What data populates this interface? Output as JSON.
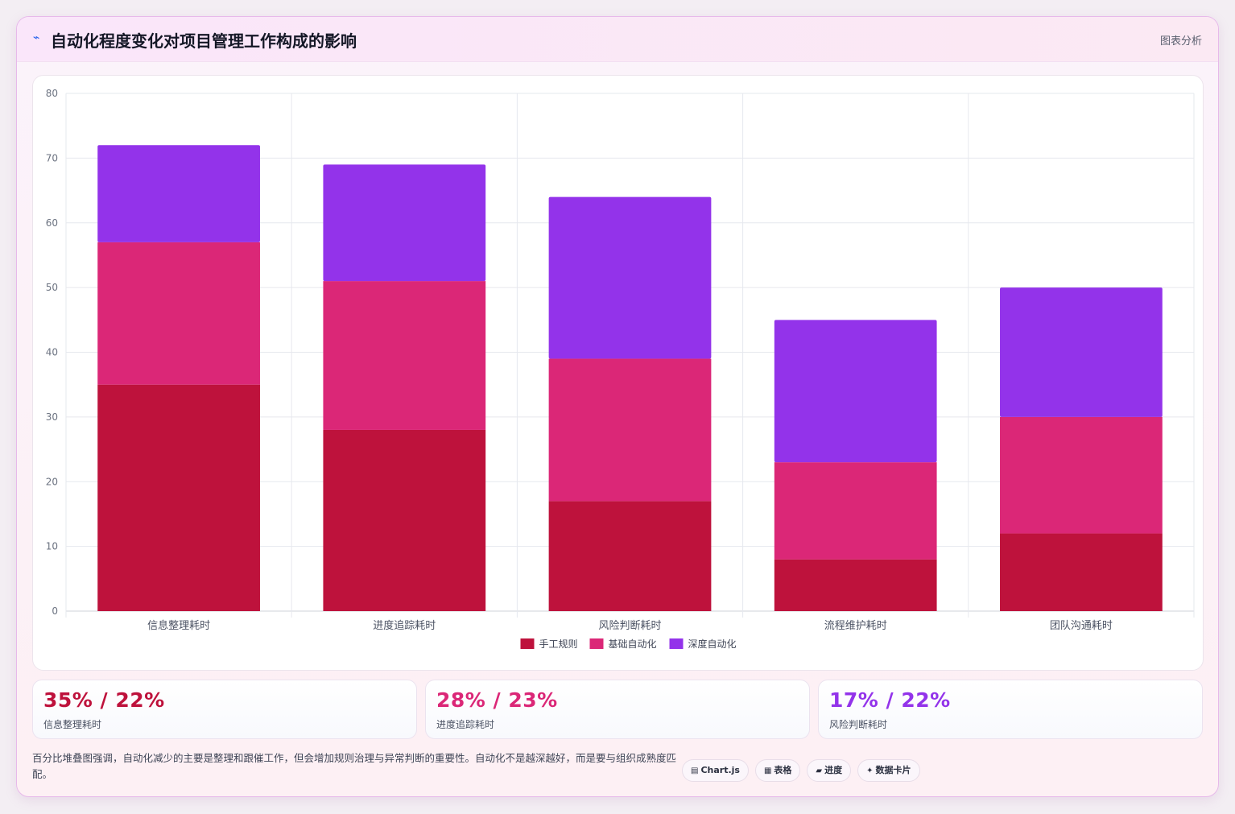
{
  "header": {
    "icon": "trend-line-icon",
    "icon_glyph": "⌁",
    "title": "自动化程度变化对项目管理工作构成的影响",
    "tag": "图表分析"
  },
  "chart_data": {
    "type": "bar",
    "stacked": true,
    "title": "",
    "xlabel": "",
    "ylabel": "",
    "categories": [
      "信息整理耗时",
      "进度追踪耗时",
      "风险判断耗时",
      "流程维护耗时",
      "团队沟通耗时"
    ],
    "series": [
      {
        "name": "手工规则",
        "color": "#be123c",
        "values": [
          35,
          28,
          17,
          8,
          12
        ]
      },
      {
        "name": "基础自动化",
        "color": "#db2777",
        "values": [
          22,
          23,
          22,
          15,
          18
        ]
      },
      {
        "name": "深度自动化",
        "color": "#9333ea",
        "values": [
          15,
          18,
          25,
          22,
          20
        ]
      }
    ],
    "ylim": [
      0,
      80
    ],
    "yticks": [
      0,
      10,
      20,
      30,
      40,
      50,
      60,
      70,
      80
    ],
    "grid": true,
    "legend_position": "bottom"
  },
  "stats": [
    {
      "value": "35% / 22%",
      "label": "信息整理耗时",
      "color": "#be123c"
    },
    {
      "value": "28% / 23%",
      "label": "进度追踪耗时",
      "color": "#db2777"
    },
    {
      "value": "17% / 22%",
      "label": "风险判断耗时",
      "color": "#9333ea"
    }
  ],
  "footer": {
    "note": "百分比堆叠图强调，自动化减少的主要是整理和跟催工作，但会增加规则治理与异常判断的重要性。自动化不是越深越好，而是要与组织成熟度匹配。",
    "pills": [
      {
        "icon": "chart-icon",
        "glyph": "▤",
        "label": "Chart.js"
      },
      {
        "icon": "table-icon",
        "glyph": "▦",
        "label": "表格"
      },
      {
        "icon": "progress-icon",
        "glyph": "▰",
        "label": "进度"
      },
      {
        "icon": "sparkle-icon",
        "glyph": "✦",
        "label": "数据卡片"
      }
    ]
  }
}
